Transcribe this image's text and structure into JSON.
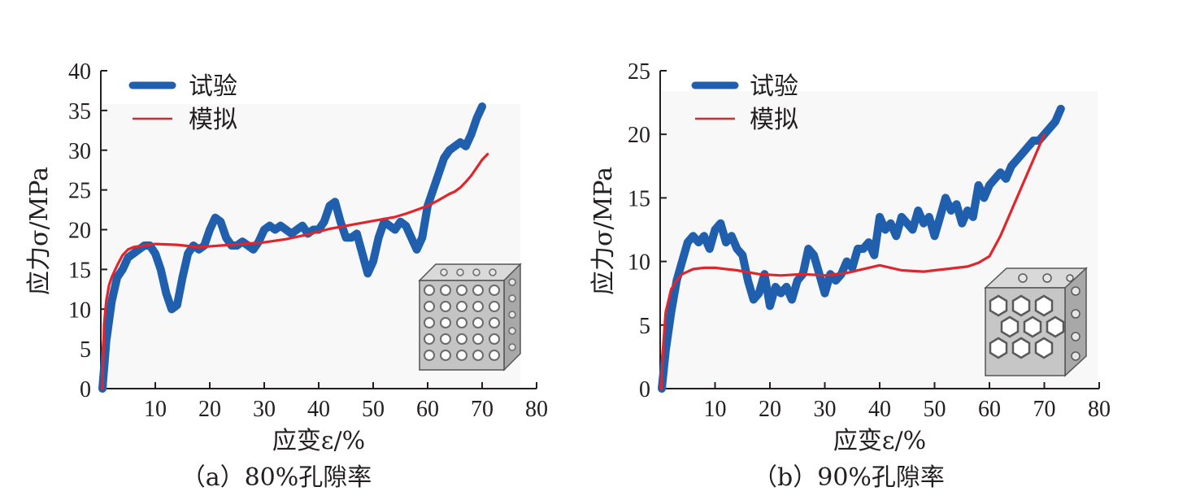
{
  "chart_data": [
    {
      "type": "line",
      "caption": "（a）80%孔隙率",
      "xlabel": "应变ε/%",
      "ylabel": "应力σ/MPa",
      "xlim": [
        0,
        80
      ],
      "ylim": [
        0,
        40
      ],
      "xticks": [
        "10",
        "20",
        "30",
        "40",
        "50",
        "60",
        "70",
        "80"
      ],
      "yticks": [
        "0",
        "5",
        "10",
        "15",
        "20",
        "25",
        "30",
        "35",
        "40"
      ],
      "legend_position": "top-left",
      "grid": false,
      "series": [
        {
          "name": "试验",
          "color": "#1f5fad",
          "style": "thick",
          "x": [
            0.3,
            1,
            2,
            3,
            4,
            5,
            6,
            7,
            8,
            9,
            10,
            11,
            12,
            13,
            14,
            15,
            16,
            17,
            18,
            19,
            20,
            21,
            22,
            23,
            24,
            25,
            26,
            27,
            28,
            29,
            30,
            31,
            32,
            33,
            34,
            35,
            36,
            37,
            38,
            39,
            40,
            41,
            42,
            43,
            44,
            45,
            46,
            47,
            48,
            49,
            50,
            51,
            52,
            53,
            54,
            55,
            56,
            57,
            58,
            59,
            60,
            61,
            62,
            63,
            64,
            65,
            66,
            67,
            68,
            69,
            70
          ],
          "y": [
            0,
            6,
            11,
            14,
            15,
            16.5,
            17,
            17.5,
            18,
            18,
            17,
            15,
            12,
            10,
            10.5,
            14,
            17,
            18,
            17.5,
            18,
            20,
            21.5,
            21,
            19,
            18,
            18,
            18.5,
            18,
            17.5,
            18.5,
            20,
            20.5,
            20,
            20.5,
            20,
            19.5,
            20,
            20.5,
            19.5,
            20,
            20,
            21,
            23,
            23.5,
            21,
            19,
            19,
            19.5,
            17,
            14.5,
            16,
            19,
            21,
            20.5,
            20,
            21,
            20.5,
            19,
            17.5,
            19,
            23,
            25,
            27,
            29,
            30,
            30.5,
            31,
            30.5,
            32,
            34,
            35.5
          ]
        },
        {
          "name": "模拟",
          "color": "#e0252c",
          "style": "thin",
          "x": [
            0.3,
            0.6,
            1,
            1.5,
            2,
            3,
            4,
            5,
            6,
            8,
            10,
            14,
            18,
            22,
            26,
            30,
            34,
            38,
            42,
            46,
            50,
            54,
            56,
            58,
            60,
            62,
            64,
            65,
            66,
            67,
            68,
            69,
            70,
            71
          ],
          "y": [
            0,
            8,
            11,
            13,
            14,
            15.5,
            16.8,
            17.5,
            17.8,
            18,
            18.2,
            18.1,
            17.8,
            18,
            18.2,
            18.4,
            18.8,
            19.4,
            20.1,
            20.6,
            21.1,
            21.6,
            22,
            22.5,
            23,
            23.7,
            24.5,
            24.8,
            25.3,
            26,
            26.8,
            27.8,
            28.8,
            29.5
          ]
        }
      ]
    },
    {
      "type": "line",
      "caption": "（b）90%孔隙率",
      "xlabel": "应变ε/%",
      "ylabel": "应力σ/MPa",
      "xlim": [
        0,
        80
      ],
      "ylim": [
        0,
        25
      ],
      "xticks": [
        "10",
        "20",
        "30",
        "40",
        "50",
        "60",
        "70",
        "80"
      ],
      "yticks": [
        "0",
        "5",
        "10",
        "15",
        "20",
        "25"
      ],
      "legend_position": "top-left",
      "grid": false,
      "series": [
        {
          "name": "试验",
          "color": "#1f5fad",
          "style": "thick",
          "x": [
            0.3,
            1,
            2,
            3,
            4,
            5,
            6,
            7,
            8,
            9,
            10,
            11,
            12,
            13,
            14,
            15,
            16,
            17,
            18,
            19,
            20,
            21,
            22,
            23,
            24,
            25,
            26,
            27,
            28,
            29,
            30,
            31,
            32,
            33,
            34,
            35,
            36,
            37,
            38,
            39,
            40,
            41,
            42,
            43,
            44,
            45,
            46,
            47,
            48,
            49,
            50,
            51,
            52,
            53,
            54,
            55,
            56,
            57,
            58,
            59,
            60,
            61,
            62,
            63,
            64,
            65,
            66,
            67,
            68,
            69,
            70,
            71,
            72,
            73
          ],
          "y": [
            0,
            3,
            6,
            8.5,
            10,
            11.5,
            12,
            11.5,
            12,
            11,
            12.5,
            13,
            11.5,
            12,
            11,
            10.5,
            8.5,
            7,
            7.5,
            9,
            6.5,
            8,
            7.5,
            8,
            7,
            8.5,
            9,
            11,
            10.5,
            9,
            7.5,
            9,
            8.5,
            9,
            10,
            9.5,
            11,
            11,
            11.5,
            10.5,
            13.5,
            12.5,
            13,
            12,
            13.5,
            13,
            12.5,
            14,
            13,
            13.5,
            12,
            13.5,
            15,
            14,
            14.5,
            13,
            14,
            13.5,
            16,
            15,
            16,
            16.5,
            17,
            16.5,
            17.5,
            18,
            18.5,
            19,
            19.5,
            19.5,
            20,
            20.5,
            21,
            22
          ]
        },
        {
          "name": "模拟",
          "color": "#e0252c",
          "style": "thin",
          "x": [
            0.2,
            0.5,
            1,
            2,
            3,
            4,
            6,
            8,
            10,
            14,
            18,
            22,
            26,
            30,
            34,
            38,
            40,
            44,
            48,
            52,
            56,
            58,
            60,
            62,
            64,
            66,
            68,
            70
          ],
          "y": [
            0,
            3,
            6,
            7.8,
            8.5,
            9,
            9.4,
            9.5,
            9.5,
            9.3,
            9.0,
            8.9,
            9.0,
            8.9,
            9.1,
            9.5,
            9.7,
            9.3,
            9.2,
            9.4,
            9.6,
            9.9,
            10.4,
            12.0,
            14.0,
            16.0,
            18.0,
            20.0
          ]
        }
      ]
    }
  ]
}
